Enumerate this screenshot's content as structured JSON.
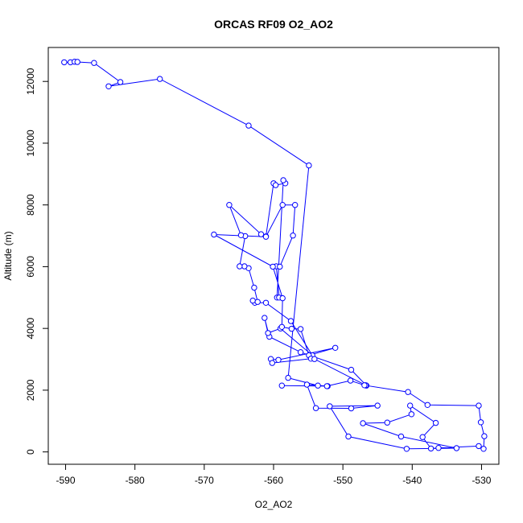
{
  "chart_data": {
    "type": "scatter",
    "title": "ORCAS RF09 O2_AO2",
    "xlabel": "O2_AO2",
    "ylabel": "Altitude (m)",
    "xlim": [
      -592.5,
      -527.5
    ],
    "ylim": [
      -400,
      13100
    ],
    "x_ticks": [
      -590,
      -580,
      -570,
      -560,
      -550,
      -540,
      -530
    ],
    "y_ticks": [
      0,
      2000,
      4000,
      6000,
      8000,
      10000,
      12000
    ],
    "x_tick_labels": [
      "-590",
      "-580",
      "-570",
      "-560",
      "-550",
      "-540",
      "-530"
    ],
    "y_tick_labels": [
      "0",
      "2000",
      "4000",
      "6000",
      "8000",
      "10000",
      "12000"
    ],
    "grid": false,
    "legend": "none",
    "colors": {
      "series": "#0000ff",
      "axes": "#000000"
    },
    "series": [
      {
        "marker": "open-circle",
        "line": true,
        "points": [
          [
            -590.2,
            12620
          ],
          [
            -589.3,
            12620
          ],
          [
            -588.7,
            12640
          ],
          [
            -588.3,
            12630
          ],
          [
            -585.9,
            12600
          ],
          [
            -582.1,
            11980
          ],
          [
            -583.8,
            11840
          ],
          [
            -576.4,
            12080
          ],
          [
            -563.6,
            10570
          ],
          [
            -554.9,
            9280
          ],
          [
            -557.9,
            2400
          ],
          [
            -553.6,
            2150
          ],
          [
            -552.2,
            2130
          ],
          [
            -555.2,
            2180
          ],
          [
            -553.9,
            1420
          ],
          [
            -548.8,
            1410
          ],
          [
            -545.0,
            1500
          ],
          [
            -551.9,
            1480
          ],
          [
            -549.2,
            500
          ],
          [
            -540.8,
            100
          ],
          [
            -533.6,
            120
          ],
          [
            -541.6,
            500
          ],
          [
            -547.1,
            930
          ],
          [
            -543.6,
            950
          ],
          [
            -540.1,
            1220
          ],
          [
            -540.3,
            1500
          ],
          [
            -536.6,
            940
          ],
          [
            -538.5,
            480
          ],
          [
            -537.3,
            110
          ],
          [
            -536.2,
            130
          ],
          [
            -530.4,
            190
          ],
          [
            -529.7,
            100
          ],
          [
            -529.6,
            510
          ],
          [
            -530.1,
            960
          ],
          [
            -530.4,
            1500
          ],
          [
            -537.8,
            1520
          ],
          [
            -540.6,
            1940
          ],
          [
            -546.6,
            2150
          ],
          [
            -548.8,
            2660
          ],
          [
            -556.1,
            3230
          ],
          [
            -560.6,
            3730
          ],
          [
            -561.3,
            4340
          ],
          [
            -560.8,
            3850
          ],
          [
            -559.0,
            4000
          ],
          [
            -554.4,
            3130
          ],
          [
            -557.5,
            4240
          ],
          [
            -561.1,
            4830
          ],
          [
            -562.7,
            4830
          ],
          [
            -563.0,
            4900
          ],
          [
            -562.3,
            4860
          ],
          [
            -562.8,
            5320
          ],
          [
            -563.6,
            5950
          ],
          [
            -564.2,
            6010
          ],
          [
            -564.9,
            6010
          ],
          [
            -564.1,
            6990
          ],
          [
            -564.7,
            7020
          ],
          [
            -566.4,
            8000
          ],
          [
            -561.8,
            7050
          ],
          [
            -561.1,
            6980
          ],
          [
            -560.0,
            8700
          ],
          [
            -559.7,
            8640
          ],
          [
            -558.3,
            8700
          ],
          [
            -558.6,
            8800
          ],
          [
            -559.5,
            5000
          ],
          [
            -559.2,
            5000
          ],
          [
            -559.6,
            6010
          ],
          [
            -559.1,
            6000
          ],
          [
            -557.2,
            7010
          ],
          [
            -556.9,
            8000
          ],
          [
            -558.7,
            8000
          ],
          [
            -561.1,
            6970
          ],
          [
            -568.6,
            7040
          ],
          [
            -560.1,
            6000
          ],
          [
            -558.7,
            4980
          ],
          [
            -558.8,
            4050
          ],
          [
            -557.4,
            3990
          ],
          [
            -556.1,
            3980
          ],
          [
            -554.9,
            3130
          ],
          [
            -551.1,
            3370
          ],
          [
            -559.3,
            2980
          ],
          [
            -560.4,
            3010
          ],
          [
            -560.2,
            2880
          ],
          [
            -554.6,
            3020
          ],
          [
            -554.1,
            3010
          ],
          [
            -546.7,
            2160
          ],
          [
            -546.9,
            2160
          ],
          [
            -548.9,
            2310
          ],
          [
            -552.3,
            2130
          ],
          [
            -558.8,
            2150
          ]
        ]
      }
    ]
  }
}
